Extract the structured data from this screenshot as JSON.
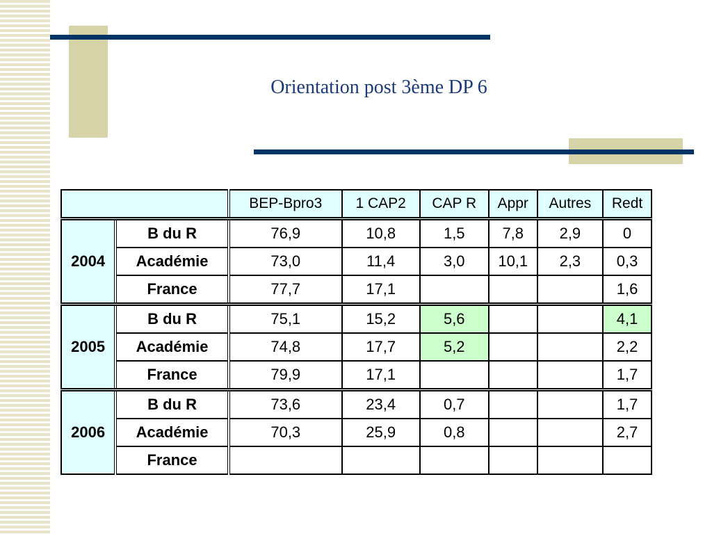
{
  "header": {
    "title": "Orientation post 3ème DP 6"
  },
  "table": {
    "columns": [
      "BEP-Bpro3",
      "1 CAP2",
      "CAP R",
      "Appr",
      "Autres",
      "Redt"
    ],
    "header_color": "#e0ffff",
    "highlight_color": "#ccffcc",
    "groups": [
      {
        "year": "2004",
        "rows": [
          {
            "label": "B du R",
            "cells": [
              "76,9",
              "10,8",
              "1,5",
              "7,8",
              "2,9",
              "0"
            ]
          },
          {
            "label": "Académie",
            "cells": [
              "73,0",
              "11,4",
              "3,0",
              "10,1",
              "2,3",
              "0,3"
            ]
          },
          {
            "label": "France",
            "cells": [
              "77,7",
              "17,1",
              null,
              null,
              null,
              "1,6"
            ]
          }
        ]
      },
      {
        "year": "2005",
        "rows": [
          {
            "label": "B du R",
            "cells": [
              "75,1",
              "15,2",
              "5,6",
              null,
              null,
              "4,1"
            ],
            "highlight": [
              2,
              5
            ]
          },
          {
            "label": "Académie",
            "cells": [
              "74,8",
              "17,7",
              "5,2",
              null,
              null,
              "2,2"
            ],
            "highlight": [
              2
            ]
          },
          {
            "label": "France",
            "cells": [
              "79,9",
              "17,1",
              null,
              null,
              null,
              "1,7"
            ]
          }
        ]
      },
      {
        "year": "2006",
        "rows": [
          {
            "label": "B du R",
            "cells": [
              "73,6",
              "23,4",
              "0,7",
              null,
              null,
              "1,7"
            ]
          },
          {
            "label": "Académie",
            "cells": [
              "70,3",
              "25,9",
              "0,8",
              null,
              null,
              "2,7"
            ]
          },
          {
            "label": "France",
            "cells": [
              null,
              null,
              null,
              null,
              null,
              null
            ]
          }
        ]
      }
    ]
  }
}
